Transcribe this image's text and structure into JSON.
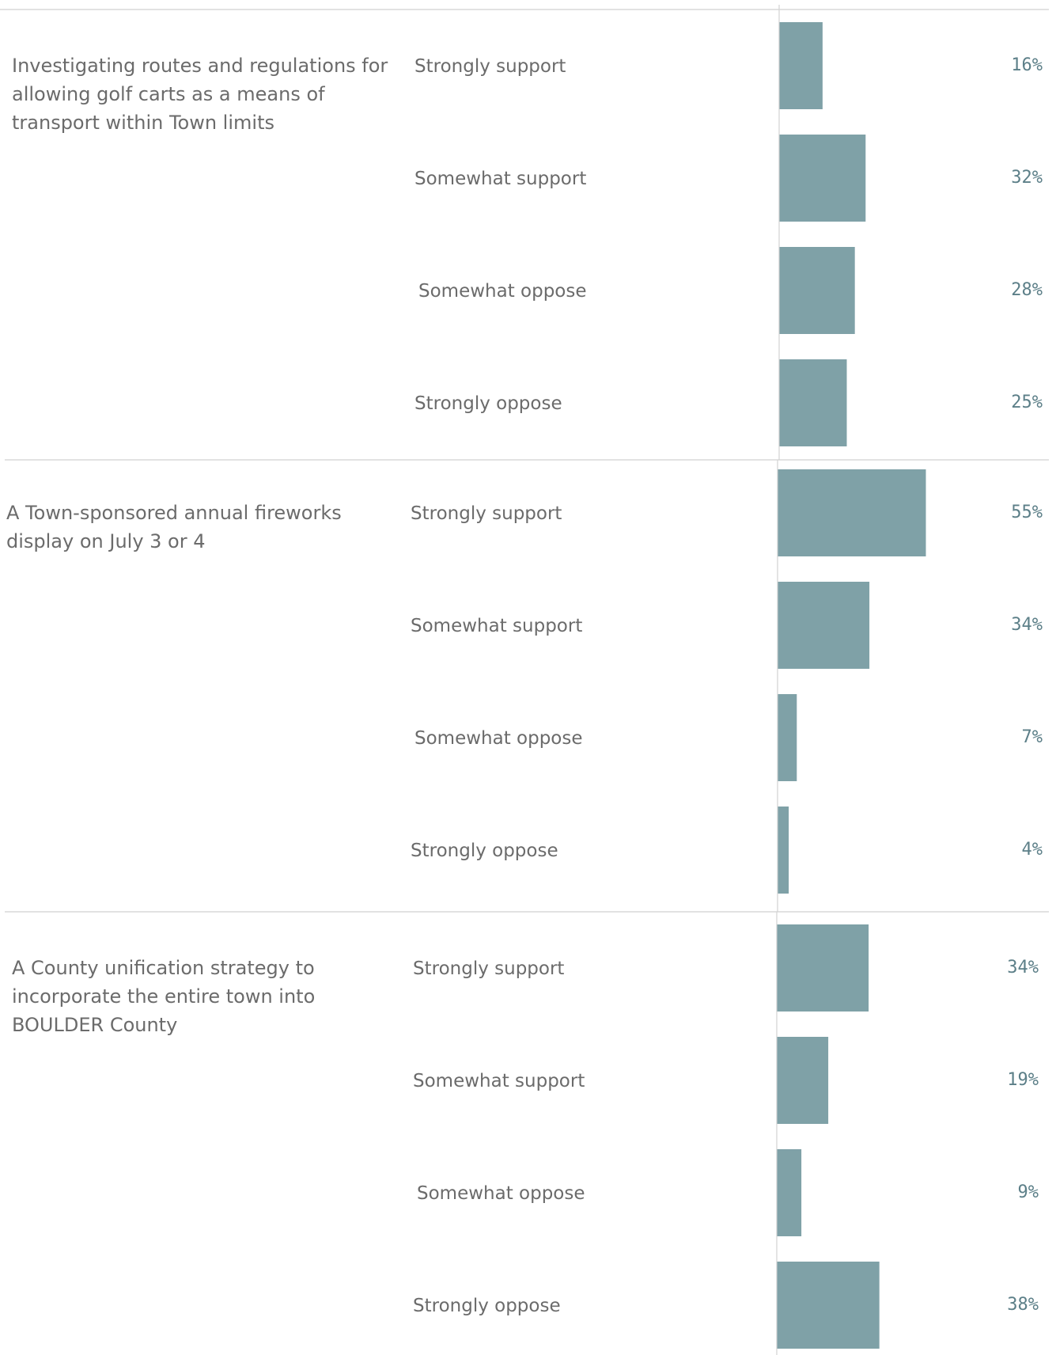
{
  "chart_data": {
    "type": "bar",
    "orientation": "horizontal",
    "color": "#7fa1a7",
    "value_format": "percent",
    "xlim": [
      0,
      100
    ],
    "groups": [
      {
        "question": "Investigating routes and regulations for allowing golf carts as a means of transport within Town limits",
        "question_lines": [
          "Investigating routes and regulations for",
          "allowing golf carts as a means of",
          "transport within Town limits"
        ],
        "categories": [
          "Strongly support",
          "Somewhat support",
          "Somewhat oppose",
          "Strongly oppose"
        ],
        "values": [
          16,
          32,
          28,
          25
        ],
        "labels": [
          "16%",
          "32%",
          "28%",
          "25%"
        ]
      },
      {
        "question": "A Town-sponsored annual fireworks display on July 3 or 4",
        "question_lines": [
          "A Town-sponsored annual fireworks",
          "display on July 3 or 4"
        ],
        "categories": [
          "Strongly support",
          "Somewhat support",
          "Somewhat oppose",
          "Strongly oppose"
        ],
        "values": [
          55,
          34,
          7,
          4
        ],
        "labels": [
          "55%",
          "34%",
          "7%",
          "4%"
        ]
      },
      {
        "question": "A County unification strategy to incorporate the entire town into BOULDER County",
        "question_lines": [
          "A County unification strategy to",
          "incorporate the entire town into",
          "BOULDER County"
        ],
        "categories": [
          "Strongly support",
          "Somewhat support",
          "Somewhat oppose",
          "Strongly oppose"
        ],
        "values": [
          34,
          19,
          9,
          38
        ],
        "labels": [
          "34%",
          "19%",
          "9%",
          "38%"
        ]
      }
    ]
  }
}
